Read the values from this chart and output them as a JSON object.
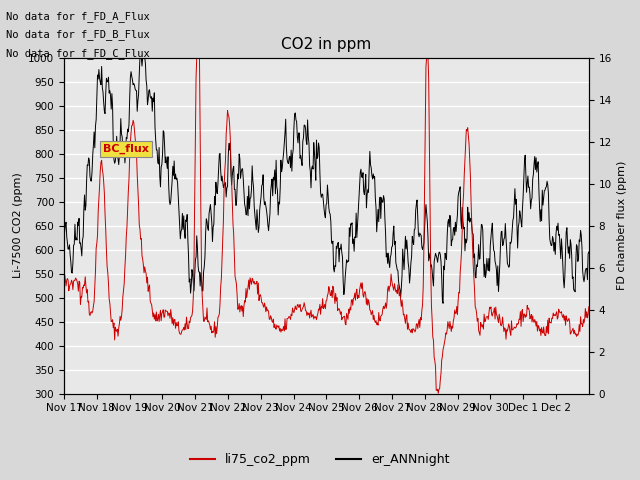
{
  "title": "CO2 in ppm",
  "ylabel_left": "Li-7500 CO2 (ppm)",
  "ylabel_right": "FD chamber flux (ppm)",
  "ylim_left": [
    300,
    1000
  ],
  "ylim_right": [
    0,
    16
  ],
  "yticks_left": [
    300,
    350,
    400,
    450,
    500,
    550,
    600,
    650,
    700,
    750,
    800,
    850,
    900,
    950,
    1000
  ],
  "yticks_right": [
    0,
    2,
    4,
    6,
    8,
    10,
    12,
    14,
    16
  ],
  "xtick_labels": [
    "Nov 17",
    "Nov 18",
    "Nov 19",
    "Nov 20",
    "Nov 21",
    "Nov 22",
    "Nov 23",
    "Nov 24",
    "Nov 25",
    "Nov 26",
    "Nov 27",
    "Nov 28",
    "Nov 29",
    "Nov 30",
    "Dec 1",
    "Dec 2"
  ],
  "no_data_texts": [
    "No data for f_FD_A_Flux",
    "No data for f_FD_B_Flux",
    "No data for f_FD_C_Flux"
  ],
  "bc_flux_label": "BC_flux",
  "legend_entries": [
    "li75_co2_ppm",
    "er_ANNnight"
  ],
  "legend_colors": [
    "#cc0000",
    "#000000"
  ],
  "line_color_red": "#cc0000",
  "line_color_black": "#000000",
  "background_color": "#d8d8d8",
  "plot_bg_color": "#e8e8e8",
  "grid_color": "#ffffff",
  "title_fontsize": 11,
  "label_fontsize": 8,
  "tick_fontsize": 7.5
}
